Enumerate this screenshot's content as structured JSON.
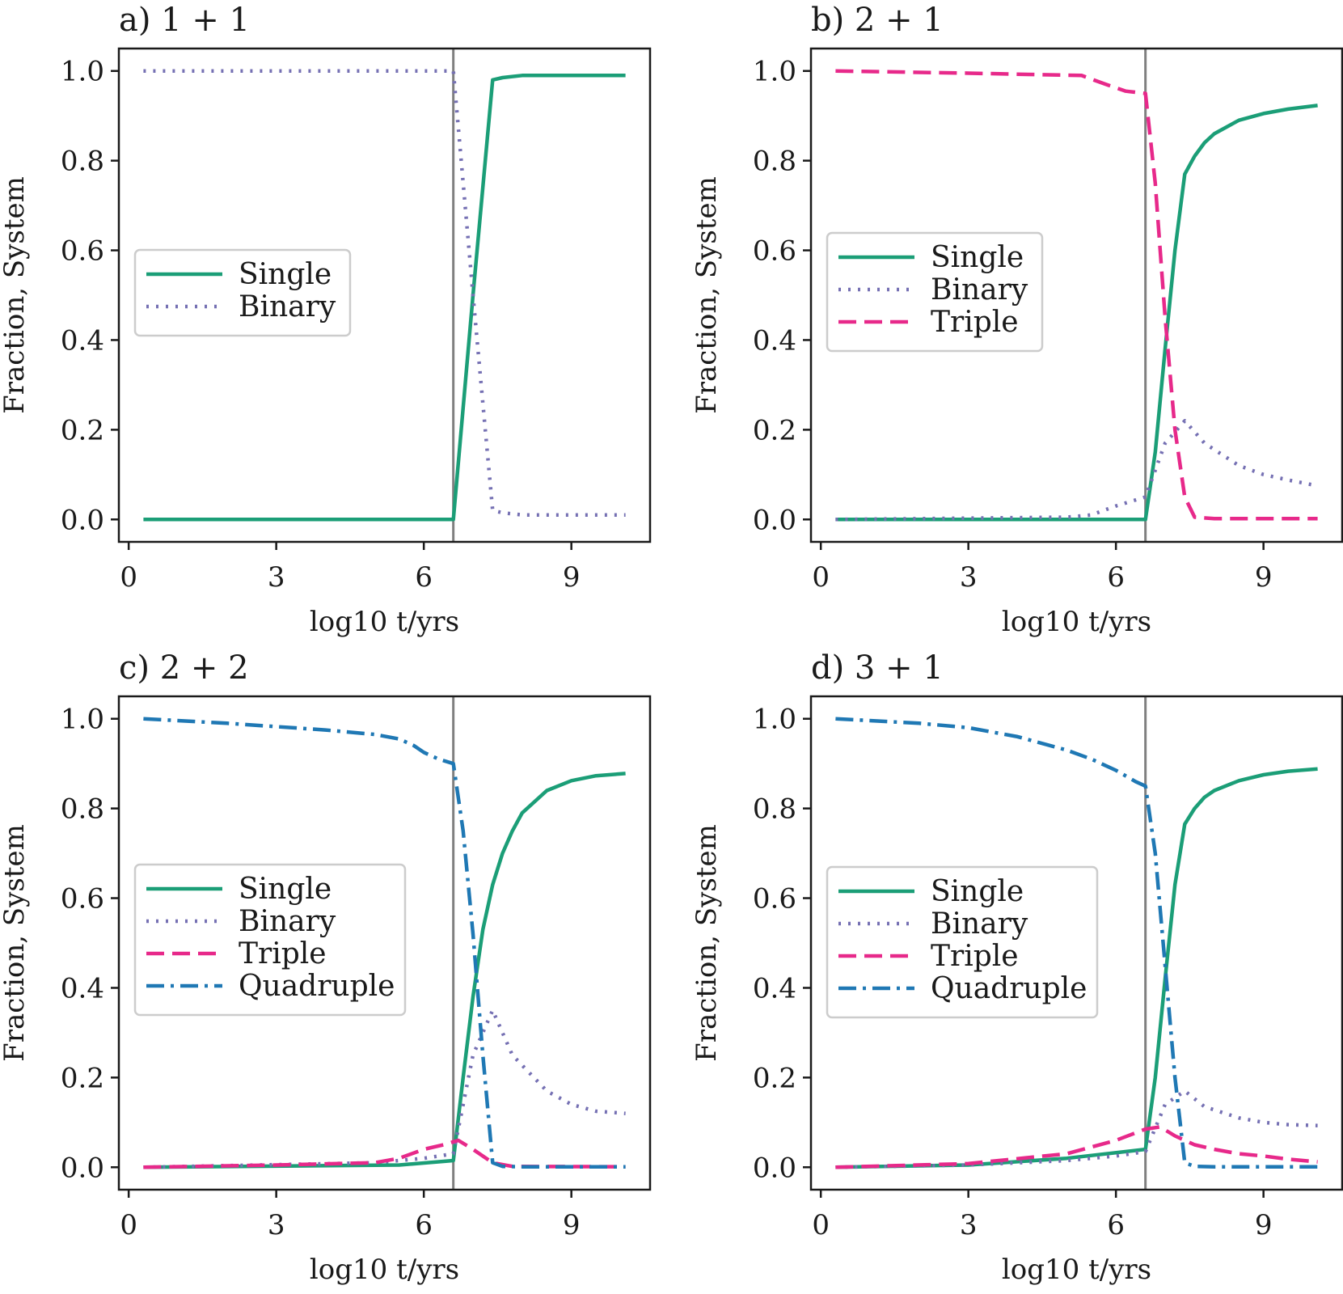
{
  "colors": {
    "Single": "#1b9e77",
    "Binary": "#7570b3",
    "Triple": "#e7298a",
    "Quadruple": "#1f78b4",
    "marker": "#808080"
  },
  "chart_data": [
    {
      "type": "line",
      "title": "a) 1 + 1",
      "xlabel": "log10 t/yrs",
      "ylabel": "Fraction, System",
      "xlim": [
        -0.2,
        10.6
      ],
      "ylim": [
        -0.05,
        1.05
      ],
      "xticks": [
        "0",
        "3",
        "6",
        "9"
      ],
      "yticks": [
        "0.0",
        "0.2",
        "0.4",
        "0.6",
        "0.8",
        "1.0"
      ],
      "vline": 6.6,
      "legend": "center-left",
      "series": [
        {
          "name": "Single",
          "style": "solid",
          "x": [
            0.3,
            6.6,
            7.0,
            7.4,
            7.6,
            8.0,
            10.1
          ],
          "y": [
            0.0,
            0.0,
            0.5,
            0.98,
            0.985,
            0.99,
            0.99
          ]
        },
        {
          "name": "Binary",
          "style": "dotted",
          "x": [
            0.3,
            6.6,
            7.0,
            7.4,
            7.6,
            8.0,
            10.1
          ],
          "y": [
            1.0,
            1.0,
            0.5,
            0.02,
            0.015,
            0.01,
            0.01
          ]
        }
      ]
    },
    {
      "type": "line",
      "title": "b) 2 + 1",
      "xlabel": "log10 t/yrs",
      "ylabel": "Fraction, System",
      "xlim": [
        -0.2,
        10.6
      ],
      "ylim": [
        -0.05,
        1.05
      ],
      "xticks": [
        "0",
        "3",
        "6",
        "9"
      ],
      "yticks": [
        "0.0",
        "0.2",
        "0.4",
        "0.6",
        "0.8",
        "1.0"
      ],
      "vline": 6.6,
      "legend": "center-left",
      "series": [
        {
          "name": "Single",
          "style": "solid",
          "x": [
            0.3,
            6.6,
            6.8,
            7.0,
            7.2,
            7.4,
            7.6,
            7.8,
            8.0,
            8.5,
            9.0,
            9.5,
            10.1
          ],
          "y": [
            0.0,
            0.0,
            0.15,
            0.38,
            0.6,
            0.77,
            0.81,
            0.84,
            0.86,
            0.89,
            0.905,
            0.915,
            0.923
          ]
        },
        {
          "name": "Binary",
          "style": "dotted",
          "x": [
            0.3,
            5.0,
            5.5,
            6.0,
            6.6,
            7.0,
            7.4,
            7.8,
            8.5,
            9.0,
            9.5,
            10.1
          ],
          "y": [
            0.0,
            0.005,
            0.01,
            0.03,
            0.05,
            0.17,
            0.22,
            0.17,
            0.12,
            0.1,
            0.088,
            0.075
          ]
        },
        {
          "name": "Triple",
          "style": "dashed",
          "x": [
            0.3,
            3.0,
            5.3,
            5.8,
            6.2,
            6.6,
            6.8,
            7.0,
            7.2,
            7.4,
            7.6,
            8.0,
            10.1
          ],
          "y": [
            1.0,
            0.995,
            0.99,
            0.97,
            0.955,
            0.95,
            0.75,
            0.45,
            0.2,
            0.05,
            0.005,
            0.002,
            0.002
          ]
        }
      ]
    },
    {
      "type": "line",
      "title": "c) 2 + 2",
      "xlabel": "log10 t/yrs",
      "ylabel": "Fraction, System",
      "xlim": [
        -0.2,
        10.6
      ],
      "ylim": [
        -0.05,
        1.05
      ],
      "xticks": [
        "0",
        "3",
        "6",
        "9"
      ],
      "yticks": [
        "0.0",
        "0.2",
        "0.4",
        "0.6",
        "0.8",
        "1.0"
      ],
      "vline": 6.6,
      "legend": "center-left",
      "series": [
        {
          "name": "Single",
          "style": "solid",
          "x": [
            0.3,
            5.5,
            6.6,
            6.8,
            7.0,
            7.2,
            7.4,
            7.6,
            7.8,
            8.0,
            8.5,
            9.0,
            9.5,
            10.1
          ],
          "y": [
            0.0,
            0.005,
            0.015,
            0.2,
            0.38,
            0.53,
            0.63,
            0.7,
            0.75,
            0.79,
            0.84,
            0.862,
            0.873,
            0.878
          ]
        },
        {
          "name": "Binary",
          "style": "dotted",
          "x": [
            0.3,
            5.0,
            6.0,
            6.6,
            7.0,
            7.4,
            7.8,
            8.5,
            9.0,
            9.5,
            10.1
          ],
          "y": [
            0.0,
            0.01,
            0.02,
            0.03,
            0.25,
            0.35,
            0.25,
            0.17,
            0.14,
            0.125,
            0.12
          ]
        },
        {
          "name": "Triple",
          "style": "dashed",
          "x": [
            0.3,
            3.0,
            5.0,
            5.5,
            6.0,
            6.4,
            6.7,
            7.0,
            7.4,
            7.8,
            10.1
          ],
          "y": [
            0.0,
            0.005,
            0.01,
            0.02,
            0.04,
            0.05,
            0.06,
            0.04,
            0.01,
            0.002,
            0.001
          ]
        },
        {
          "name": "Quadruple",
          "style": "dashdot",
          "x": [
            0.3,
            2.0,
            4.0,
            5.0,
            5.5,
            5.8,
            6.0,
            6.3,
            6.6,
            6.8,
            7.0,
            7.2,
            7.4,
            7.6,
            8.0,
            10.1
          ],
          "y": [
            1.0,
            0.99,
            0.975,
            0.965,
            0.955,
            0.94,
            0.925,
            0.91,
            0.9,
            0.75,
            0.52,
            0.25,
            0.01,
            0.002,
            0.001,
            0.001
          ]
        }
      ]
    },
    {
      "type": "line",
      "title": "d) 3 + 1",
      "xlabel": "log10 t/yrs",
      "ylabel": "Fraction, System",
      "xlim": [
        -0.2,
        10.6
      ],
      "ylim": [
        -0.05,
        1.05
      ],
      "xticks": [
        "0",
        "3",
        "6",
        "9"
      ],
      "yticks": [
        "0.0",
        "0.2",
        "0.4",
        "0.6",
        "0.8",
        "1.0"
      ],
      "vline": 6.6,
      "legend": "center-left",
      "series": [
        {
          "name": "Single",
          "style": "solid",
          "x": [
            0.3,
            3.0,
            5.0,
            6.6,
            6.8,
            7.0,
            7.2,
            7.4,
            7.6,
            7.8,
            8.0,
            8.5,
            9.0,
            9.5,
            10.1
          ],
          "y": [
            0.0,
            0.005,
            0.02,
            0.04,
            0.2,
            0.42,
            0.63,
            0.765,
            0.8,
            0.825,
            0.84,
            0.862,
            0.875,
            0.883,
            0.888
          ]
        },
        {
          "name": "Binary",
          "style": "dotted",
          "x": [
            0.3,
            3.0,
            5.0,
            6.0,
            6.6,
            7.0,
            7.4,
            7.8,
            8.5,
            9.0,
            9.5,
            10.1
          ],
          "y": [
            0.0,
            0.005,
            0.015,
            0.025,
            0.035,
            0.14,
            0.17,
            0.135,
            0.11,
            0.1,
            0.095,
            0.093
          ]
        },
        {
          "name": "Triple",
          "style": "dashed",
          "x": [
            0.3,
            3.0,
            5.0,
            6.0,
            6.6,
            6.9,
            7.2,
            7.6,
            8.0,
            8.5,
            9.0,
            9.5,
            10.1
          ],
          "y": [
            0.0,
            0.008,
            0.03,
            0.06,
            0.085,
            0.09,
            0.07,
            0.05,
            0.04,
            0.03,
            0.025,
            0.018,
            0.012
          ]
        },
        {
          "name": "Quadruple",
          "style": "dashdot",
          "x": [
            0.3,
            2.0,
            3.0,
            4.0,
            5.0,
            5.5,
            6.0,
            6.4,
            6.6,
            6.8,
            7.0,
            7.2,
            7.4,
            7.6,
            8.0,
            10.1
          ],
          "y": [
            1.0,
            0.99,
            0.98,
            0.96,
            0.93,
            0.91,
            0.885,
            0.86,
            0.85,
            0.7,
            0.45,
            0.2,
            0.01,
            0.002,
            0.001,
            0.001
          ]
        }
      ]
    }
  ]
}
